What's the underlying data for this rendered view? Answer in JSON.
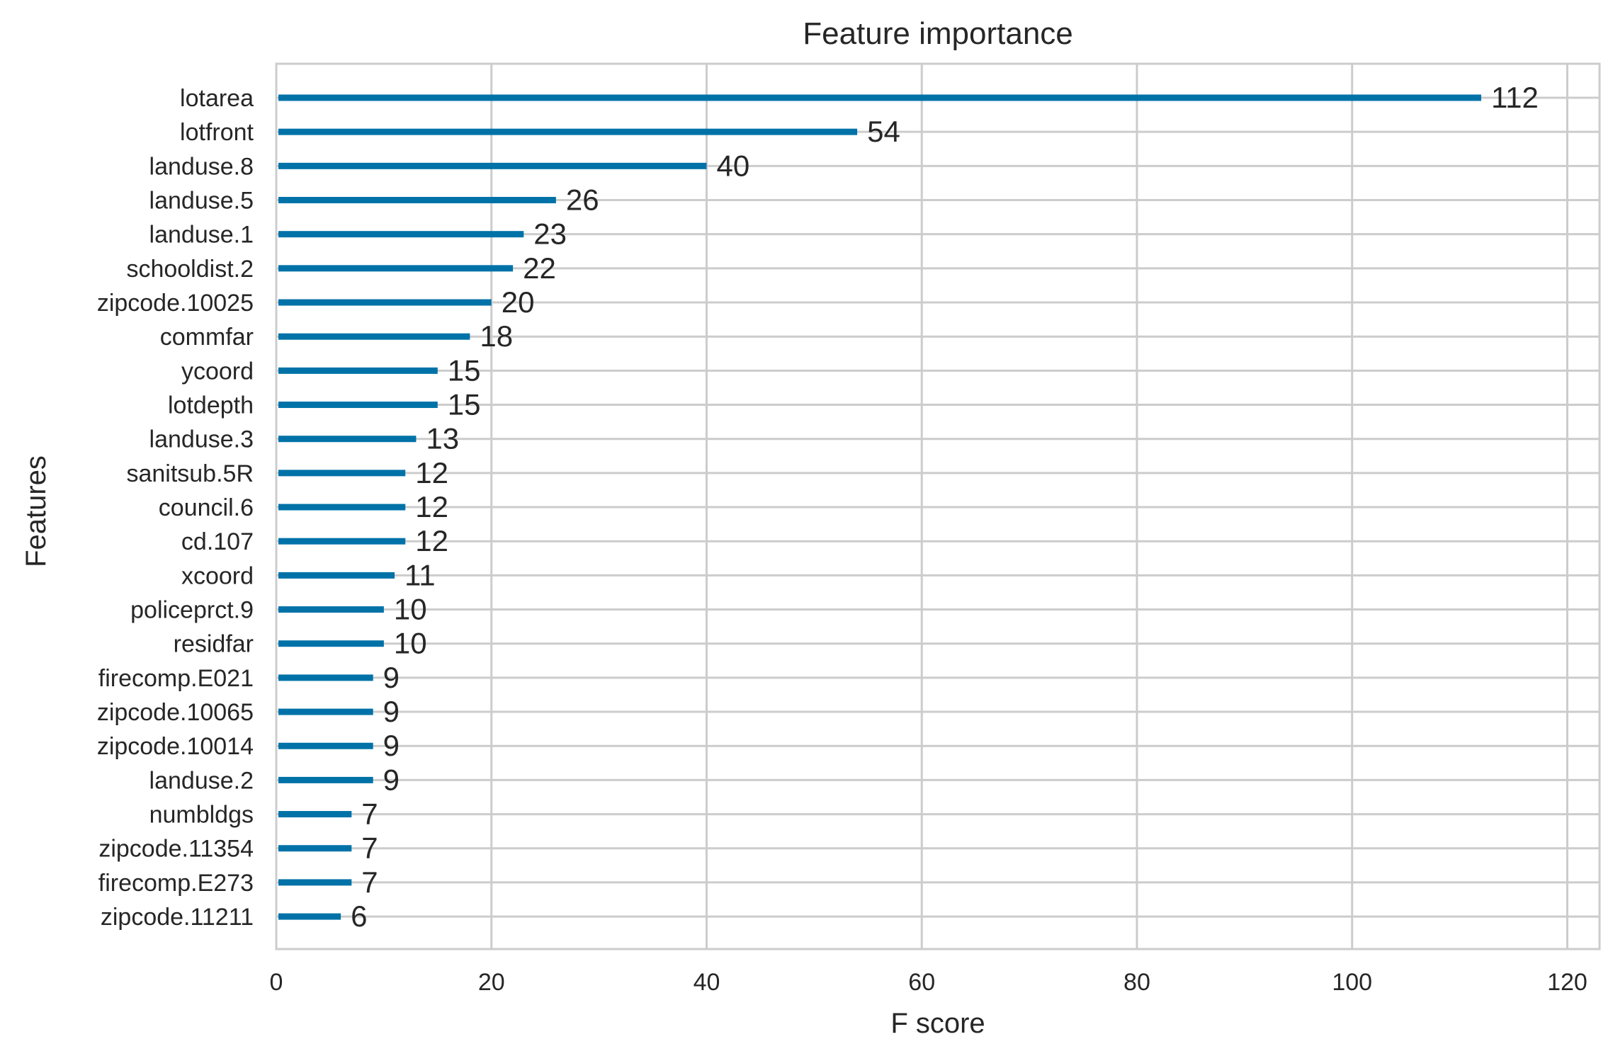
{
  "chart_data": {
    "type": "bar",
    "orientation": "horizontal",
    "title": "Feature importance",
    "xlabel": "F score",
    "ylabel": "Features",
    "xlim": [
      0,
      123
    ],
    "xticks": [
      0,
      20,
      40,
      60,
      80,
      100,
      120
    ],
    "grid": true,
    "bar_color": "#0072a8",
    "categories": [
      "lotarea",
      "lotfront",
      "landuse.8",
      "landuse.5",
      "landuse.1",
      "schooldist.2",
      "zipcode.10025",
      "commfar",
      "ycoord",
      "lotdepth",
      "landuse.3",
      "sanitsub.5R",
      "council.6",
      "cd.107",
      "xcoord",
      "policeprct.9",
      "residfar",
      "firecomp.E021",
      "zipcode.10065",
      "zipcode.10014",
      "landuse.2",
      "numbldgs",
      "zipcode.11354",
      "firecomp.E273",
      "zipcode.11211"
    ],
    "values": [
      112,
      54,
      40,
      26,
      23,
      22,
      20,
      18,
      15,
      15,
      13,
      12,
      12,
      12,
      11,
      10,
      10,
      9,
      9,
      9,
      9,
      7,
      7,
      7,
      6
    ]
  }
}
